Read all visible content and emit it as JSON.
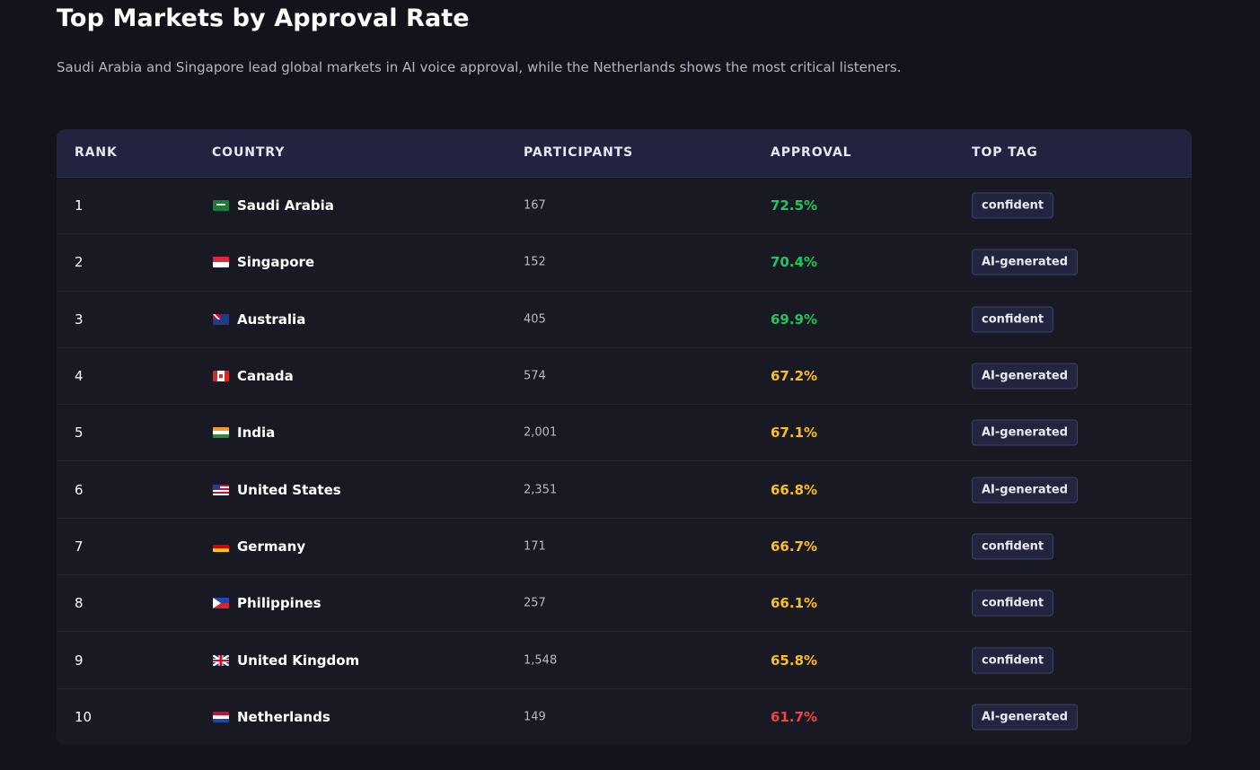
{
  "header": {
    "title": "Top Markets by Approval Rate",
    "subtitle": "Saudi Arabia and Singapore lead global markets in AI voice approval, while the Netherlands shows the most critical listeners."
  },
  "table": {
    "columns": {
      "rank": "RANK",
      "country": "COUNTRY",
      "participants": "PARTICIPANTS",
      "approval": "APPROVAL",
      "top_tag": "TOP TAG"
    },
    "rows": [
      {
        "rank": "1",
        "flag": "saudi-arabia-flag-icon",
        "country": "Saudi Arabia",
        "participants": "167",
        "approval": "72.5%",
        "tag": "confident"
      },
      {
        "rank": "2",
        "flag": "singapore-flag-icon",
        "country": "Singapore",
        "participants": "152",
        "approval": "70.4%",
        "tag": "AI-generated"
      },
      {
        "rank": "3",
        "flag": "australia-flag-icon",
        "country": "Australia",
        "participants": "405",
        "approval": "69.9%",
        "tag": "confident"
      },
      {
        "rank": "4",
        "flag": "canada-flag-icon",
        "country": "Canada",
        "participants": "574",
        "approval": "67.2%",
        "tag": "AI-generated"
      },
      {
        "rank": "5",
        "flag": "india-flag-icon",
        "country": "India",
        "participants": "2,001",
        "approval": "67.1%",
        "tag": "AI-generated"
      },
      {
        "rank": "6",
        "flag": "united-states-flag-icon",
        "country": "United States",
        "participants": "2,351",
        "approval": "66.8%",
        "tag": "AI-generated"
      },
      {
        "rank": "7",
        "flag": "germany-flag-icon",
        "country": "Germany",
        "participants": "171",
        "approval": "66.7%",
        "tag": "confident"
      },
      {
        "rank": "8",
        "flag": "philippines-flag-icon",
        "country": "Philippines",
        "participants": "257",
        "approval": "66.1%",
        "tag": "confident"
      },
      {
        "rank": "9",
        "flag": "united-kingdom-flag-icon",
        "country": "United Kingdom",
        "participants": "1,548",
        "approval": "65.8%",
        "tag": "confident"
      },
      {
        "rank": "10",
        "flag": "netherlands-flag-icon",
        "country": "Netherlands",
        "participants": "149",
        "approval": "61.7%",
        "tag": "AI-generated"
      }
    ]
  },
  "colors": {
    "approval_high": "#22c55e",
    "approval_mid": "#fbbf24",
    "approval_low": "#ef4444",
    "header_bg": "#22243f",
    "page_bg": "#13131c"
  }
}
